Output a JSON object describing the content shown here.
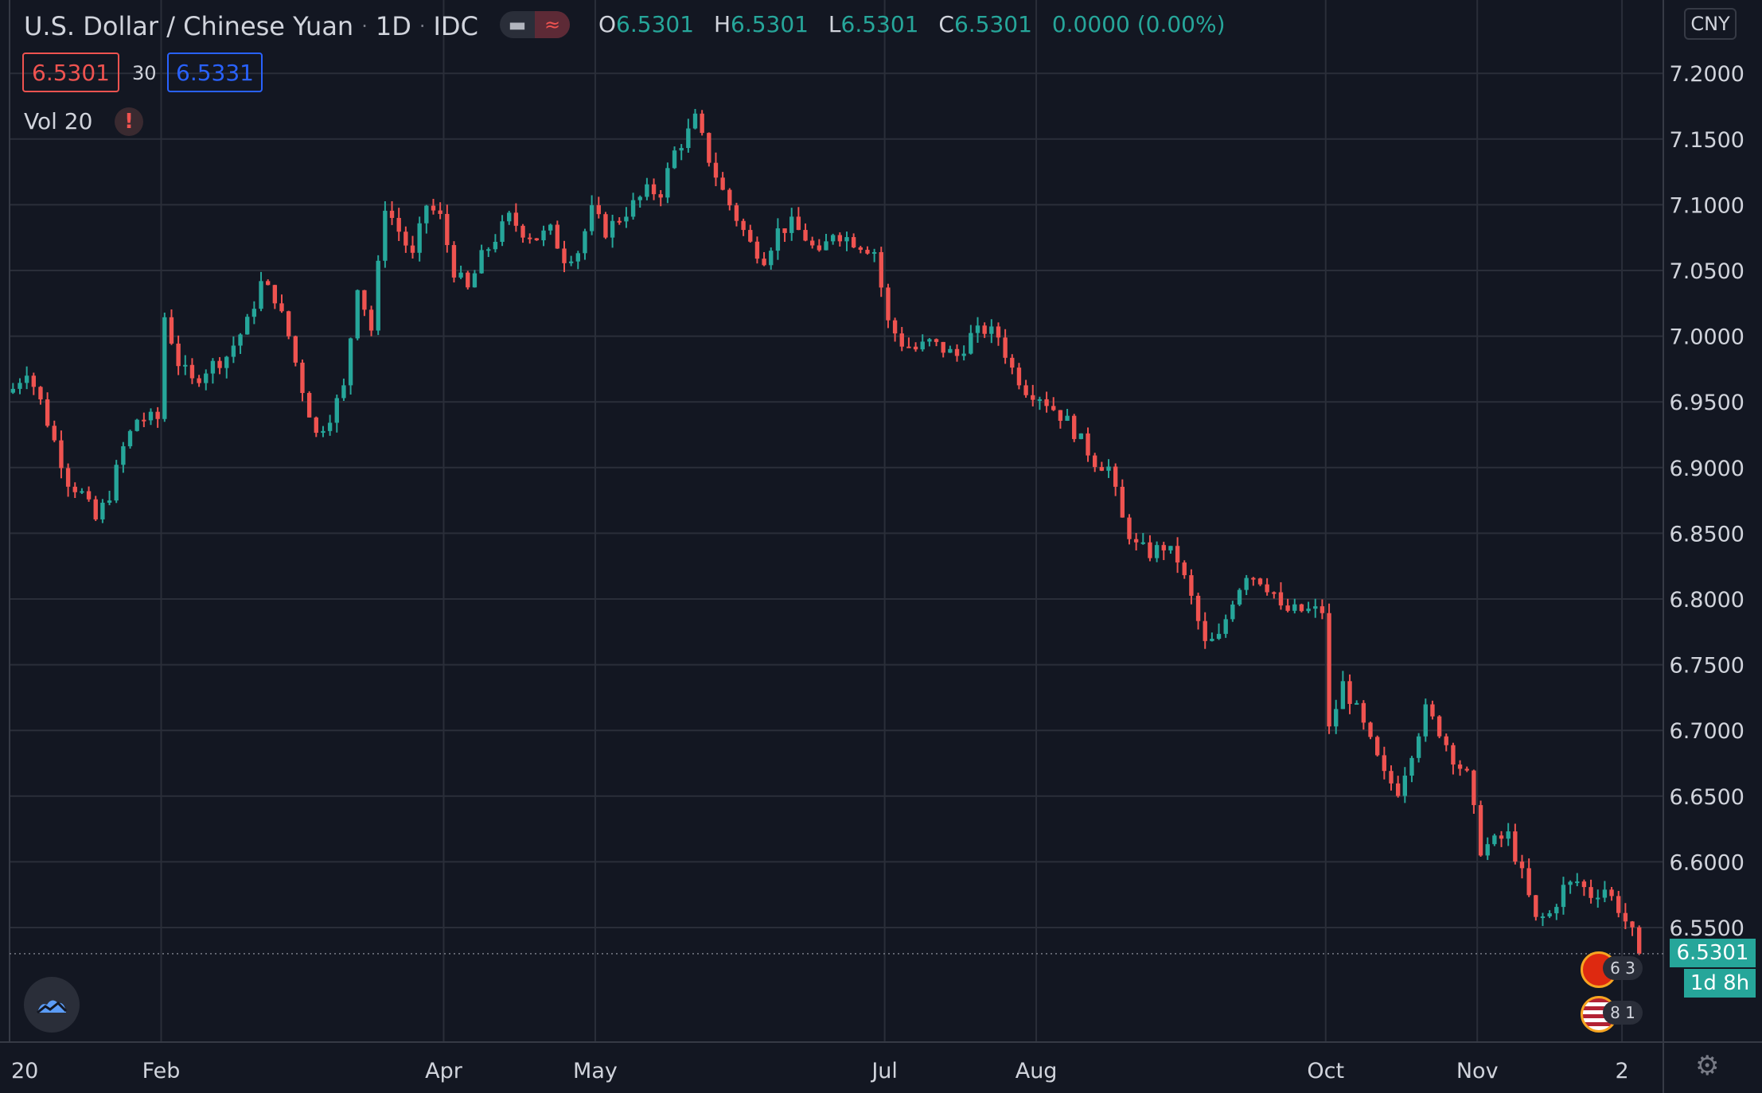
{
  "header": {
    "symbol": "U.S. Dollar / Chinese Yuan",
    "interval": "1D",
    "exchange": "IDC",
    "toggle_eye_icon": "eye-icon",
    "toggle_wave_icon": "wave-icon",
    "dot": "·"
  },
  "ohlc": {
    "o_label": "O",
    "o": "6.5301",
    "h_label": "H",
    "h": "6.5301",
    "l_label": "L",
    "l": "6.5301",
    "c_label": "C",
    "c": "6.5301",
    "change": "0.0000 (0.00%)"
  },
  "trade": {
    "sell": "6.5301",
    "spread": "30",
    "buy": "6.5331"
  },
  "indicator": {
    "label": "Vol 20",
    "warning": "!"
  },
  "price_axis": {
    "currency": "CNY",
    "last_price": "6.5301",
    "countdown": "1d 8h",
    "ticks": [
      "7.2000",
      "7.1500",
      "7.1000",
      "7.0500",
      "7.0000",
      "6.9500",
      "6.9000",
      "6.8500",
      "6.8000",
      "6.7500",
      "6.7000",
      "6.6500",
      "6.6000",
      "6.5500"
    ]
  },
  "time_axis": {
    "labels": [
      {
        "label": "20",
        "day": 0
      },
      {
        "label": "Feb",
        "day": 22
      },
      {
        "label": "Apr",
        "day": 63
      },
      {
        "label": "May",
        "day": 85
      },
      {
        "label": "Jul",
        "day": 127
      },
      {
        "label": "Aug",
        "day": 149
      },
      {
        "label": "Oct",
        "day": 191
      },
      {
        "label": "Nov",
        "day": 213
      },
      {
        "label": "2",
        "day": 234
      }
    ]
  },
  "events": [
    {
      "flag": "china-flag-icon",
      "count": "6 3"
    },
    {
      "flag": "us-flag-icon",
      "count": "8 1"
    }
  ],
  "colors": {
    "up": "#26a69a",
    "down": "#ef5350",
    "background": "#131722",
    "grid": "#2a2e39",
    "text": "#d1d4dc"
  },
  "chart_data": {
    "type": "candlestick",
    "title": "U.S. Dollar / Chinese Yuan · 1D · IDC",
    "ylim": [
      6.48,
      7.25
    ],
    "grid": true,
    "x_unit": "trading days",
    "series": [
      {
        "name": "USDCNY",
        "anchors": [
          {
            "day": 0,
            "close": 6.96
          },
          {
            "day": 2,
            "close": 6.975
          },
          {
            "day": 4,
            "close": 6.95
          },
          {
            "day": 6,
            "close": 6.92
          },
          {
            "day": 8,
            "close": 6.89
          },
          {
            "day": 10,
            "close": 6.88
          },
          {
            "day": 12,
            "close": 6.86
          },
          {
            "day": 14,
            "close": 6.88
          },
          {
            "day": 16,
            "close": 6.915
          },
          {
            "day": 18,
            "close": 6.937
          },
          {
            "day": 21,
            "close": 6.937
          },
          {
            "day": 22,
            "close": 7.015
          },
          {
            "day": 24,
            "close": 6.98
          },
          {
            "day": 26,
            "close": 6.965
          },
          {
            "day": 28,
            "close": 6.975
          },
          {
            "day": 31,
            "close": 6.985
          },
          {
            "day": 34,
            "close": 7.01
          },
          {
            "day": 36,
            "close": 7.04
          },
          {
            "day": 38,
            "close": 7.03
          },
          {
            "day": 40,
            "close": 7.0
          },
          {
            "day": 42,
            "close": 6.96
          },
          {
            "day": 44,
            "close": 6.925
          },
          {
            "day": 46,
            "close": 6.94
          },
          {
            "day": 48,
            "close": 6.96
          },
          {
            "day": 50,
            "close": 7.04
          },
          {
            "day": 52,
            "close": 7.005
          },
          {
            "day": 54,
            "close": 7.1
          },
          {
            "day": 56,
            "close": 7.08
          },
          {
            "day": 58,
            "close": 7.06
          },
          {
            "day": 60,
            "close": 7.1
          },
          {
            "day": 62,
            "close": 7.09
          },
          {
            "day": 64,
            "close": 7.05
          },
          {
            "day": 66,
            "close": 7.035
          },
          {
            "day": 68,
            "close": 7.06
          },
          {
            "day": 70,
            "close": 7.075
          },
          {
            "day": 72,
            "close": 7.09
          },
          {
            "day": 74,
            "close": 7.08
          },
          {
            "day": 76,
            "close": 7.075
          },
          {
            "day": 78,
            "close": 7.08
          },
          {
            "day": 80,
            "close": 7.06
          },
          {
            "day": 82,
            "close": 7.065
          },
          {
            "day": 84,
            "close": 7.095
          },
          {
            "day": 86,
            "close": 7.08
          },
          {
            "day": 88,
            "close": 7.09
          },
          {
            "day": 90,
            "close": 7.1
          },
          {
            "day": 92,
            "close": 7.11
          },
          {
            "day": 94,
            "close": 7.11
          },
          {
            "day": 96,
            "close": 7.14
          },
          {
            "day": 98,
            "close": 7.155
          },
          {
            "day": 99,
            "close": 7.165
          },
          {
            "day": 101,
            "close": 7.135
          },
          {
            "day": 103,
            "close": 7.11
          },
          {
            "day": 105,
            "close": 7.09
          },
          {
            "day": 107,
            "close": 7.07
          },
          {
            "day": 109,
            "close": 7.06
          },
          {
            "day": 111,
            "close": 7.08
          },
          {
            "day": 113,
            "close": 7.085
          },
          {
            "day": 115,
            "close": 7.075
          },
          {
            "day": 117,
            "close": 7.06
          },
          {
            "day": 119,
            "close": 7.08
          },
          {
            "day": 121,
            "close": 7.075
          },
          {
            "day": 123,
            "close": 7.07
          },
          {
            "day": 125,
            "close": 7.065
          },
          {
            "day": 127,
            "close": 7.01
          },
          {
            "day": 129,
            "close": 6.995
          },
          {
            "day": 131,
            "close": 6.99
          },
          {
            "day": 133,
            "close": 6.995
          },
          {
            "day": 135,
            "close": 6.99
          },
          {
            "day": 137,
            "close": 6.985
          },
          {
            "day": 139,
            "close": 7.0
          },
          {
            "day": 141,
            "close": 7.005
          },
          {
            "day": 143,
            "close": 7.0
          },
          {
            "day": 145,
            "close": 6.975
          },
          {
            "day": 147,
            "close": 6.96
          },
          {
            "day": 149,
            "close": 6.955
          },
          {
            "day": 151,
            "close": 6.945
          },
          {
            "day": 153,
            "close": 6.935
          },
          {
            "day": 155,
            "close": 6.92
          },
          {
            "day": 157,
            "close": 6.905
          },
          {
            "day": 159,
            "close": 6.9
          },
          {
            "day": 161,
            "close": 6.86
          },
          {
            "day": 163,
            "close": 6.84
          },
          {
            "day": 165,
            "close": 6.835
          },
          {
            "day": 167,
            "close": 6.84
          },
          {
            "day": 169,
            "close": 6.83
          },
          {
            "day": 171,
            "close": 6.8
          },
          {
            "day": 173,
            "close": 6.765
          },
          {
            "day": 175,
            "close": 6.77
          },
          {
            "day": 177,
            "close": 6.8
          },
          {
            "day": 179,
            "close": 6.82
          },
          {
            "day": 181,
            "close": 6.815
          },
          {
            "day": 183,
            "close": 6.805
          },
          {
            "day": 184,
            "close": 6.791
          },
          {
            "day": 190,
            "close": 6.791
          },
          {
            "day": 191,
            "close": 6.7
          },
          {
            "day": 193,
            "close": 6.735
          },
          {
            "day": 195,
            "close": 6.715
          },
          {
            "day": 197,
            "close": 6.69
          },
          {
            "day": 199,
            "close": 6.665
          },
          {
            "day": 201,
            "close": 6.655
          },
          {
            "day": 203,
            "close": 6.685
          },
          {
            "day": 205,
            "close": 6.715
          },
          {
            "day": 207,
            "close": 6.7
          },
          {
            "day": 209,
            "close": 6.68
          },
          {
            "day": 211,
            "close": 6.665
          },
          {
            "day": 213,
            "close": 6.61
          },
          {
            "day": 215,
            "close": 6.615
          },
          {
            "day": 217,
            "close": 6.62
          },
          {
            "day": 219,
            "close": 6.59
          },
          {
            "day": 221,
            "close": 6.555
          },
          {
            "day": 223,
            "close": 6.56
          },
          {
            "day": 225,
            "close": 6.58
          },
          {
            "day": 227,
            "close": 6.585
          },
          {
            "day": 229,
            "close": 6.575
          },
          {
            "day": 231,
            "close": 6.58
          },
          {
            "day": 233,
            "close": 6.565
          },
          {
            "day": 235,
            "close": 6.545
          },
          {
            "day": 236,
            "close": 6.5301
          }
        ]
      }
    ]
  }
}
